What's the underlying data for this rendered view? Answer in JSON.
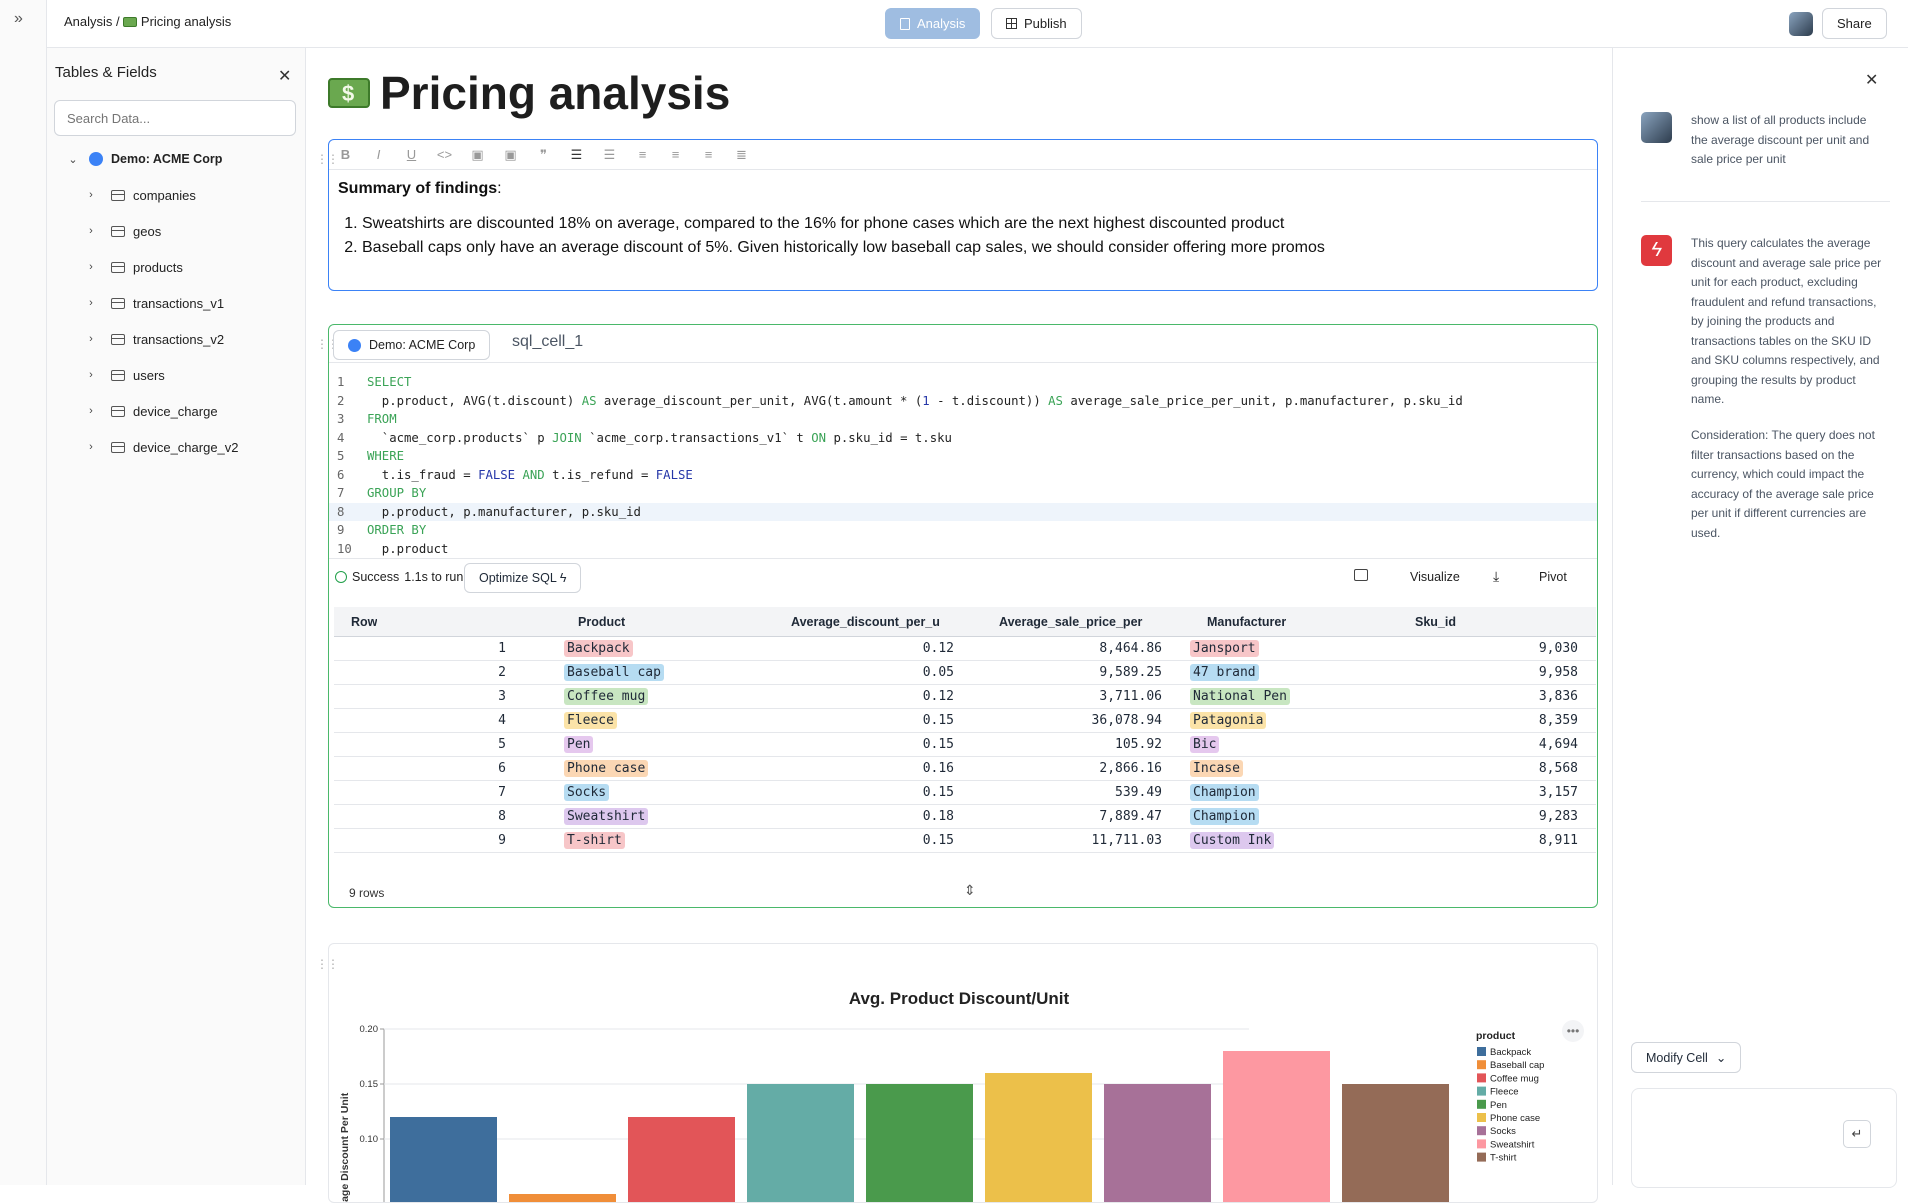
{
  "breadcrumb": {
    "root": "Analysis",
    "sep": "/",
    "page": "Pricing analysis"
  },
  "toolbar": {
    "analysis": "Analysis",
    "publish": "Publish",
    "share": "Share"
  },
  "left_panel": {
    "title": "Tables & Fields",
    "search_placeholder": "Search Data...",
    "database": "Demo: ACME Corp",
    "tables": [
      "companies",
      "geos",
      "products",
      "transactions_v1",
      "transactions_v2",
      "users",
      "device_charge",
      "device_charge_v2"
    ]
  },
  "page": {
    "title": "Pricing analysis"
  },
  "text_cell": {
    "heading": "Summary of findings",
    "heading_suffix": ":",
    "items": [
      "Sweatshirts are discounted 18% on average, compared to the 16% for phone cases which are the next highest discounted product",
      "Baseball caps only have an average discount of 5%. Given historically low baseball cap sales, we should consider offering more promos"
    ]
  },
  "sql_cell": {
    "connection": "Demo: ACME Corp",
    "name": "sql_cell_1",
    "line_numbers": [
      "1",
      "2",
      "3",
      "4",
      "5",
      "6",
      "7",
      "8",
      "9",
      "10"
    ],
    "status": "Success",
    "runtime": "1.1s to run",
    "optimize": "Optimize SQL",
    "visualize": "Visualize",
    "pivot": "Pivot",
    "columns": [
      "Row",
      "Product",
      "Average_discount_per_u",
      "Average_sale_price_per",
      "Manufacturer",
      "Sku_id"
    ],
    "rows": [
      {
        "row": "1",
        "product": "Backpack",
        "discount": "0.12",
        "price": "8,464.86",
        "manufacturer": "Jansport",
        "sku": "9,030"
      },
      {
        "row": "2",
        "product": "Baseball cap",
        "discount": "0.05",
        "price": "9,589.25",
        "manufacturer": "47 brand",
        "sku": "9,958"
      },
      {
        "row": "3",
        "product": "Coffee mug",
        "discount": "0.12",
        "price": "3,711.06",
        "manufacturer": "National Pen",
        "sku": "3,836"
      },
      {
        "row": "4",
        "product": "Fleece",
        "discount": "0.15",
        "price": "36,078.94",
        "manufacturer": "Patagonia",
        "sku": "8,359"
      },
      {
        "row": "5",
        "product": "Pen",
        "discount": "0.15",
        "price": "105.92",
        "manufacturer": "Bic",
        "sku": "4,694"
      },
      {
        "row": "6",
        "product": "Phone case",
        "discount": "0.16",
        "price": "2,866.16",
        "manufacturer": "Incase",
        "sku": "8,568"
      },
      {
        "row": "7",
        "product": "Socks",
        "discount": "0.15",
        "price": "539.49",
        "manufacturer": "Champion",
        "sku": "3,157"
      },
      {
        "row": "8",
        "product": "Sweatshirt",
        "discount": "0.18",
        "price": "7,889.47",
        "manufacturer": "Champion",
        "sku": "9,283"
      },
      {
        "row": "9",
        "product": "T-shirt",
        "discount": "0.15",
        "price": "11,711.03",
        "manufacturer": "Custom Ink",
        "sku": "8,911"
      }
    ],
    "row_count": "9 rows"
  },
  "colors": {
    "product_pills": [
      "#f7c6c8",
      "#b6dcf2",
      "#c8e6c1",
      "#fbe3a8",
      "#e5c8ee",
      "#fbd7b4",
      "#b6dcf2",
      "#ddc8ee",
      "#f7c6c8"
    ],
    "manufacturer_pills": [
      "#f7c6c8",
      "#b6dcf2",
      "#c8e6c1",
      "#fbe3a8",
      "#e5c8ee",
      "#fbd7b4",
      "#b6dcf2",
      "#b6dcf2",
      "#ddc8ee"
    ]
  },
  "chart_data": {
    "type": "bar",
    "title": "Avg. Product Discount/Unit",
    "xlabel": "",
    "ylabel": "Average Discount Per Unit",
    "ylabel_visible": "rage Discount Per Unit",
    "ylim": [
      0,
      0.2
    ],
    "yticks": [
      "0.20",
      "0.15",
      "0.10"
    ],
    "categories": [
      "Backpack",
      "Baseball cap",
      "Coffee mug",
      "Fleece",
      "Pen",
      "Phone case",
      "Socks",
      "Sweatshirt",
      "T-shirt"
    ],
    "values": [
      0.12,
      0.05,
      0.12,
      0.15,
      0.15,
      0.16,
      0.15,
      0.18,
      0.15
    ],
    "colors": [
      "#3e6e9c",
      "#f08e39",
      "#e25558",
      "#64aca6",
      "#4a9a4c",
      "#ecc04a",
      "#a77198",
      "#fd98a1",
      "#946b57"
    ],
    "legend_title": "product",
    "legend_position": "right"
  },
  "right_panel": {
    "user_message": "show a list of all products include the average discount per unit and sale price per unit",
    "assistant_message": "This query calculates the average discount and average sale price per unit for each product, excluding fraudulent and refund transactions, by joining the products and transactions tables on the SKU ID and SKU columns respectively, and grouping the results by product name.",
    "consideration": "Consideration: The query does not filter transactions based on the currency, which could impact the accuracy of the average sale price per unit if different currencies are used.",
    "modify_cell": "Modify Cell"
  }
}
